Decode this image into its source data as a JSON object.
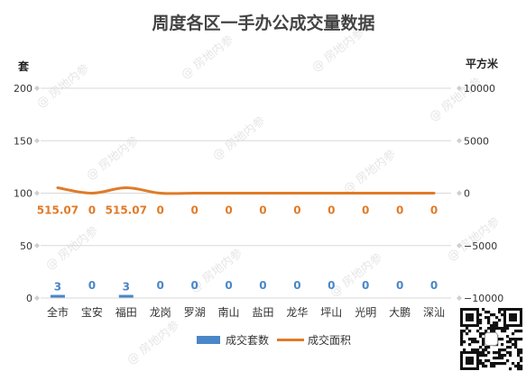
{
  "chart_data": {
    "type": "bar",
    "title": "周度各区一手办公成交量数据",
    "categories": [
      "全市",
      "宝安",
      "福田",
      "龙岗",
      "罗湖",
      "南山",
      "盐田",
      "龙华",
      "坪山",
      "光明",
      "大鹏",
      "深汕"
    ],
    "series": [
      {
        "name": "成交套数",
        "type": "bar",
        "axis": "left",
        "color": "#4a86c8",
        "values": [
          3,
          0,
          3,
          0,
          0,
          0,
          0,
          0,
          0,
          0,
          0,
          0
        ],
        "labels": [
          "3",
          "0",
          "3",
          "0",
          "0",
          "0",
          "0",
          "0",
          "0",
          "0",
          "0",
          "0"
        ]
      },
      {
        "name": "成交面积",
        "type": "line",
        "axis": "right",
        "color": "#e07b28",
        "values": [
          515.07,
          0,
          515.07,
          0,
          0,
          0,
          0,
          0,
          0,
          0,
          0,
          0
        ],
        "labels": [
          "515.07",
          "0",
          "515.07",
          "0",
          "0",
          "0",
          "0",
          "0",
          "0",
          "0",
          "0",
          "0"
        ]
      }
    ],
    "y_left": {
      "label": "套",
      "min": 0,
      "max": 200,
      "ticks": [
        0,
        50,
        100,
        150,
        200
      ],
      "tick_labels": [
        "0",
        "50",
        "100",
        "150",
        "200"
      ]
    },
    "y_right": {
      "label": "平方米",
      "min": -10000,
      "max": 10000,
      "ticks": [
        -10000,
        -5000,
        0,
        5000,
        10000
      ],
      "tick_labels": [
        "−10000",
        "−5000",
        "0",
        "5000",
        "10000"
      ]
    },
    "grid": true,
    "legend": "bottom"
  },
  "watermark": "@ 房地内参"
}
